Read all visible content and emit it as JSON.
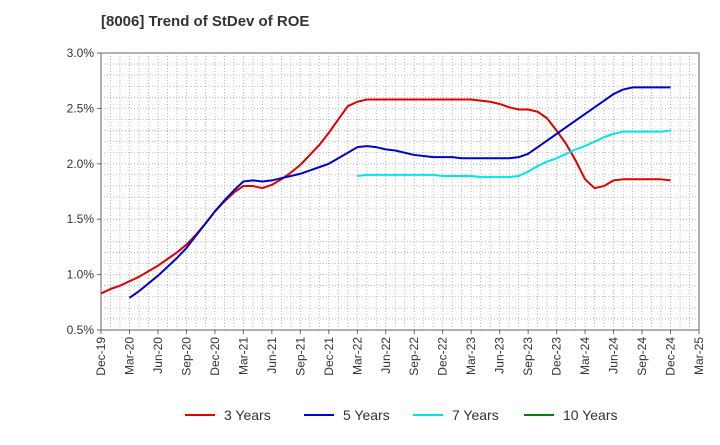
{
  "chart_data": {
    "type": "line",
    "title": "[8006]  Trend of StDev of ROE",
    "xlabel": "",
    "ylabel": "",
    "ylim": [
      0.5,
      3.0
    ],
    "y_ticks": [
      "0.5%",
      "1.0%",
      "1.5%",
      "2.0%",
      "2.5%",
      "3.0%"
    ],
    "y_tick_values": [
      0.5,
      1.0,
      1.5,
      2.0,
      2.5,
      3.0
    ],
    "x_ticks": [
      "Dec-19",
      "Mar-20",
      "Jun-20",
      "Sep-20",
      "Dec-20",
      "Mar-21",
      "Jun-21",
      "Sep-21",
      "Dec-21",
      "Mar-22",
      "Jun-22",
      "Sep-22",
      "Dec-22",
      "Mar-23",
      "Jun-23",
      "Sep-23",
      "Dec-23",
      "Mar-24",
      "Jun-24",
      "Sep-24",
      "Dec-24",
      "Mar-25"
    ],
    "grid": true,
    "legend_position": "bottom",
    "series": [
      {
        "name": "3 Years",
        "color": "#dd0000",
        "points": [
          [
            "Dec-19",
            0.83
          ],
          [
            "Jan-20",
            0.87
          ],
          [
            "Feb-20",
            0.9
          ],
          [
            "Mar-20",
            0.94
          ],
          [
            "Apr-20",
            0.98
          ],
          [
            "May-20",
            1.03
          ],
          [
            "Jun-20",
            1.08
          ],
          [
            "Jul-20",
            1.14
          ],
          [
            "Aug-20",
            1.2
          ],
          [
            "Sep-20",
            1.27
          ],
          [
            "Oct-20",
            1.36
          ],
          [
            "Nov-20",
            1.46
          ],
          [
            "Dec-20",
            1.57
          ],
          [
            "Jan-21",
            1.66
          ],
          [
            "Feb-21",
            1.74
          ],
          [
            "Mar-21",
            1.8
          ],
          [
            "Apr-21",
            1.8
          ],
          [
            "May-21",
            1.78
          ],
          [
            "Jun-21",
            1.81
          ],
          [
            "Jul-21",
            1.86
          ],
          [
            "Aug-21",
            1.92
          ],
          [
            "Sep-21",
            1.99
          ],
          [
            "Oct-21",
            2.08
          ],
          [
            "Nov-21",
            2.17
          ],
          [
            "Dec-21",
            2.28
          ],
          [
            "Jan-22",
            2.4
          ],
          [
            "Feb-22",
            2.52
          ],
          [
            "Mar-22",
            2.56
          ],
          [
            "Apr-22",
            2.58
          ],
          [
            "May-22",
            2.58
          ],
          [
            "Jun-22",
            2.58
          ],
          [
            "Jul-22",
            2.58
          ],
          [
            "Aug-22",
            2.58
          ],
          [
            "Sep-22",
            2.58
          ],
          [
            "Oct-22",
            2.58
          ],
          [
            "Nov-22",
            2.58
          ],
          [
            "Dec-22",
            2.58
          ],
          [
            "Jan-23",
            2.58
          ],
          [
            "Feb-23",
            2.58
          ],
          [
            "Mar-23",
            2.58
          ],
          [
            "Apr-23",
            2.57
          ],
          [
            "May-23",
            2.56
          ],
          [
            "Jun-23",
            2.54
          ],
          [
            "Jul-23",
            2.51
          ],
          [
            "Aug-23",
            2.49
          ],
          [
            "Sep-23",
            2.49
          ],
          [
            "Oct-23",
            2.47
          ],
          [
            "Nov-23",
            2.41
          ],
          [
            "Dec-23",
            2.3
          ],
          [
            "Jan-24",
            2.18
          ],
          [
            "Feb-24",
            2.03
          ],
          [
            "Mar-24",
            1.86
          ],
          [
            "Apr-24",
            1.78
          ],
          [
            "May-24",
            1.8
          ],
          [
            "Jun-24",
            1.85
          ],
          [
            "Jul-24",
            1.86
          ],
          [
            "Aug-24",
            1.86
          ],
          [
            "Sep-24",
            1.86
          ],
          [
            "Oct-24",
            1.86
          ],
          [
            "Nov-24",
            1.86
          ],
          [
            "Dec-24",
            1.85
          ]
        ]
      },
      {
        "name": "5 Years",
        "color": "#0000cc",
        "points": [
          [
            "Mar-20",
            0.79
          ],
          [
            "Apr-20",
            0.85
          ],
          [
            "May-20",
            0.92
          ],
          [
            "Jun-20",
            0.99
          ],
          [
            "Jul-20",
            1.07
          ],
          [
            "Aug-20",
            1.15
          ],
          [
            "Sep-20",
            1.24
          ],
          [
            "Oct-20",
            1.35
          ],
          [
            "Nov-20",
            1.46
          ],
          [
            "Dec-20",
            1.57
          ],
          [
            "Jan-21",
            1.67
          ],
          [
            "Feb-21",
            1.76
          ],
          [
            "Mar-21",
            1.84
          ],
          [
            "Apr-21",
            1.85
          ],
          [
            "May-21",
            1.84
          ],
          [
            "Jun-21",
            1.85
          ],
          [
            "Jul-21",
            1.87
          ],
          [
            "Aug-21",
            1.89
          ],
          [
            "Sep-21",
            1.91
          ],
          [
            "Oct-21",
            1.94
          ],
          [
            "Nov-21",
            1.97
          ],
          [
            "Dec-21",
            2.0
          ],
          [
            "Jan-22",
            2.05
          ],
          [
            "Feb-22",
            2.1
          ],
          [
            "Mar-22",
            2.15
          ],
          [
            "Apr-22",
            2.16
          ],
          [
            "May-22",
            2.15
          ],
          [
            "Jun-22",
            2.13
          ],
          [
            "Jul-22",
            2.12
          ],
          [
            "Aug-22",
            2.1
          ],
          [
            "Sep-22",
            2.08
          ],
          [
            "Oct-22",
            2.07
          ],
          [
            "Nov-22",
            2.06
          ],
          [
            "Dec-22",
            2.06
          ],
          [
            "Jan-23",
            2.06
          ],
          [
            "Feb-23",
            2.05
          ],
          [
            "Mar-23",
            2.05
          ],
          [
            "Apr-23",
            2.05
          ],
          [
            "May-23",
            2.05
          ],
          [
            "Jun-23",
            2.05
          ],
          [
            "Jul-23",
            2.05
          ],
          [
            "Aug-23",
            2.06
          ],
          [
            "Sep-23",
            2.09
          ],
          [
            "Oct-23",
            2.15
          ],
          [
            "Nov-23",
            2.21
          ],
          [
            "Dec-23",
            2.27
          ],
          [
            "Jan-24",
            2.33
          ],
          [
            "Feb-24",
            2.39
          ],
          [
            "Mar-24",
            2.45
          ],
          [
            "Apr-24",
            2.51
          ],
          [
            "May-24",
            2.57
          ],
          [
            "Jun-24",
            2.63
          ],
          [
            "Jul-24",
            2.67
          ],
          [
            "Aug-24",
            2.69
          ],
          [
            "Sep-24",
            2.69
          ],
          [
            "Oct-24",
            2.69
          ],
          [
            "Nov-24",
            2.69
          ],
          [
            "Dec-24",
            2.69
          ]
        ]
      },
      {
        "name": "7 Years",
        "color": "#00e5e5",
        "points": [
          [
            "Mar-22",
            1.89
          ],
          [
            "Apr-22",
            1.9
          ],
          [
            "May-22",
            1.9
          ],
          [
            "Jun-22",
            1.9
          ],
          [
            "Jul-22",
            1.9
          ],
          [
            "Aug-22",
            1.9
          ],
          [
            "Sep-22",
            1.9
          ],
          [
            "Oct-22",
            1.9
          ],
          [
            "Nov-22",
            1.9
          ],
          [
            "Dec-22",
            1.89
          ],
          [
            "Jan-23",
            1.89
          ],
          [
            "Feb-23",
            1.89
          ],
          [
            "Mar-23",
            1.89
          ],
          [
            "Apr-23",
            1.88
          ],
          [
            "May-23",
            1.88
          ],
          [
            "Jun-23",
            1.88
          ],
          [
            "Jul-23",
            1.88
          ],
          [
            "Aug-23",
            1.89
          ],
          [
            "Sep-23",
            1.93
          ],
          [
            "Oct-23",
            1.98
          ],
          [
            "Nov-23",
            2.02
          ],
          [
            "Dec-23",
            2.05
          ],
          [
            "Jan-24",
            2.09
          ],
          [
            "Feb-24",
            2.13
          ],
          [
            "Mar-24",
            2.16
          ],
          [
            "Apr-24",
            2.2
          ],
          [
            "May-24",
            2.24
          ],
          [
            "Jun-24",
            2.27
          ],
          [
            "Jul-24",
            2.29
          ],
          [
            "Aug-24",
            2.29
          ],
          [
            "Sep-24",
            2.29
          ],
          [
            "Oct-24",
            2.29
          ],
          [
            "Nov-24",
            2.29
          ],
          [
            "Dec-24",
            2.3
          ]
        ]
      },
      {
        "name": "10 Years",
        "color": "#008000",
        "points": []
      }
    ]
  }
}
